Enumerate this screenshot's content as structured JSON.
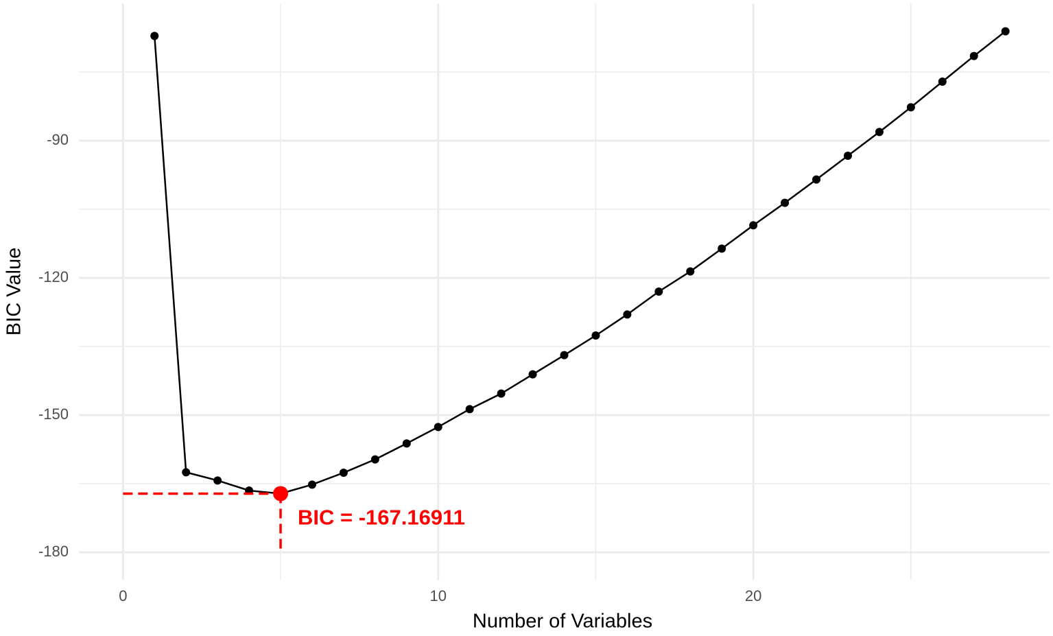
{
  "chart_data": {
    "type": "line",
    "x_label": "Number of Variables",
    "y_label": "BIC Value",
    "x": [
      1,
      2,
      3,
      4,
      5,
      6,
      7,
      8,
      9,
      10,
      11,
      12,
      13,
      14,
      15,
      16,
      17,
      18,
      19,
      20,
      21,
      22,
      23,
      24,
      25,
      26,
      27,
      28
    ],
    "series": [
      {
        "name": "BIC",
        "color": "#000000",
        "values": [
          -67.1,
          -162.5,
          -164.3,
          -166.5,
          -167.16911,
          -165.2,
          -162.6,
          -159.7,
          -156.2,
          -152.6,
          -148.7,
          -145.3,
          -141.1,
          -136.9,
          -132.6,
          -128.0,
          -123.0,
          -118.6,
          -113.6,
          -108.5,
          -103.6,
          -98.5,
          -93.3,
          -88.1,
          -82.7,
          -77.1,
          -71.5,
          -66.1
        ]
      }
    ],
    "highlight": {
      "index": 4,
      "color": "#ff0000",
      "label": "BIC = -167.16911"
    },
    "xlim": [
      -1.4,
      29.4
    ],
    "ylim": [
      -186,
      -60
    ],
    "xticks": [
      0,
      10,
      20
    ],
    "yticks": [
      -180,
      -150,
      -120,
      -90
    ],
    "minor_xticks": [
      5,
      15,
      25
    ],
    "minor_yticks": [
      -165,
      -135,
      -105,
      -75
    ],
    "grid": true
  }
}
